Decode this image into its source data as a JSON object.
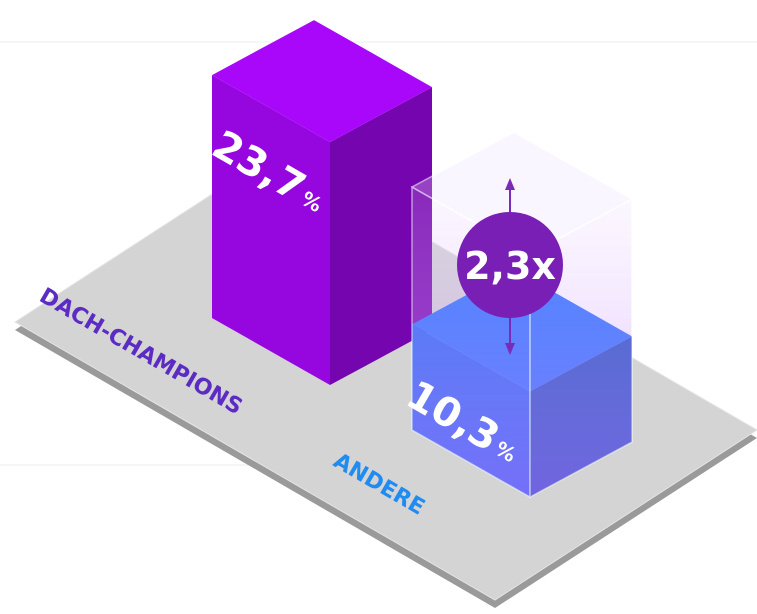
{
  "chart_data": {
    "type": "bar3d",
    "categories": [
      "DACH-CHAMPIONS",
      "ANDERE"
    ],
    "category_colors": [
      "#5b2bc4",
      "#1e8cf0"
    ],
    "values": [
      23.7,
      10.3
    ],
    "value_labels": [
      "23,7%",
      "10,3%"
    ],
    "colors": [
      "#9606df",
      "#1f62f2"
    ],
    "annotation": "2,3x"
  }
}
